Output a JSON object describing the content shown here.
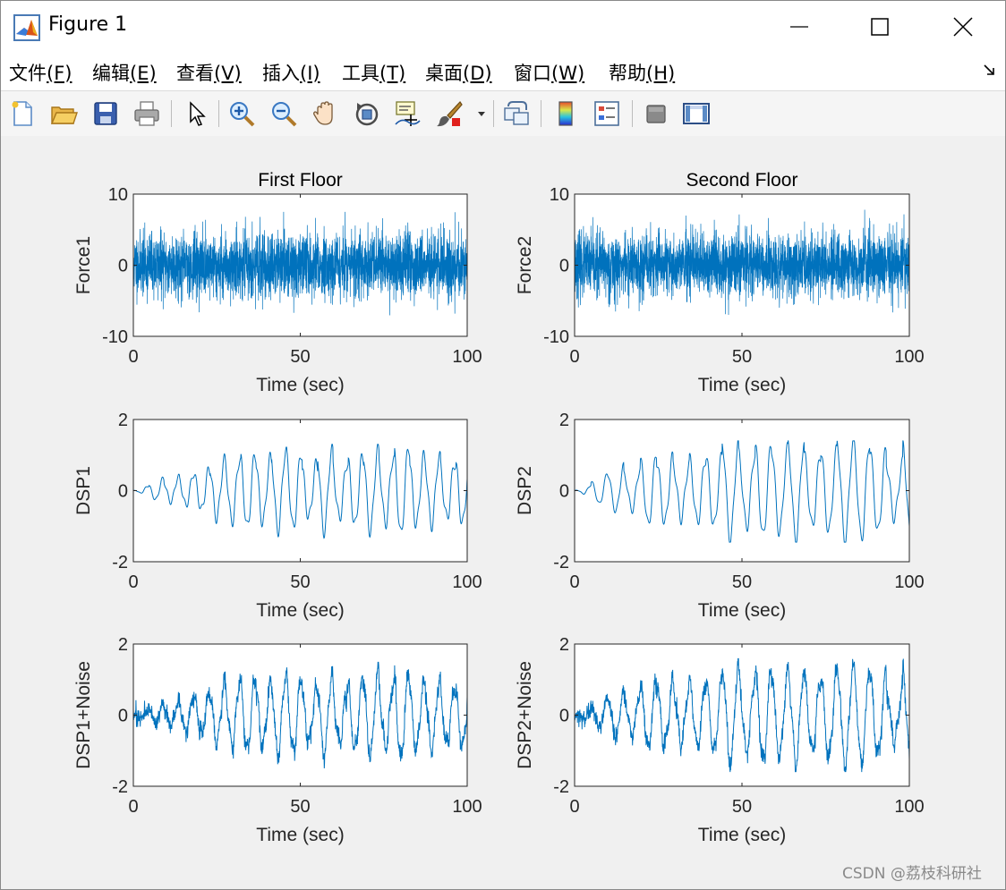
{
  "window": {
    "title": "Figure 1"
  },
  "menu": [
    {
      "label": "文件",
      "key": "(F)"
    },
    {
      "label": "编辑",
      "key": "(E)"
    },
    {
      "label": "查看",
      "key": "(V)"
    },
    {
      "label": "插入",
      "key": "(I)"
    },
    {
      "label": "工具",
      "key": "(T)"
    },
    {
      "label": "桌面",
      "key": "(D)"
    },
    {
      "label": "窗口",
      "key": "(W)"
    },
    {
      "label": "帮助",
      "key": "(H)"
    }
  ],
  "toolbar": [
    "new-figure-icon",
    "open-file-icon",
    "save-icon",
    "print-icon",
    "pointer-icon",
    "zoom-in-icon",
    "zoom-out-icon",
    "pan-hand-icon",
    "rotate-3d-icon",
    "data-cursor-icon",
    "brush-icon",
    "brush-dropdown-icon",
    "link-plot-icon",
    "colorbar-icon",
    "legend-icon",
    "hide-plot-tools-icon",
    "show-plot-tools-icon"
  ],
  "watermark": "CSDN @荔枝科研社",
  "colors": {
    "line": "#0072BD",
    "background": "#f0f0f0"
  },
  "chart_data": [
    {
      "type": "line",
      "title": "First Floor",
      "xlabel": "Time (sec)",
      "ylabel": "Force1",
      "xlim": [
        0,
        100
      ],
      "ylim": [
        -10,
        10
      ],
      "xticks": [
        "0",
        "50",
        "100"
      ],
      "yticks": [
        "-10",
        "0",
        "10"
      ],
      "kind": "noise",
      "sigma": 2.2,
      "peak": 7.5,
      "seed": 11
    },
    {
      "type": "line",
      "title": "Second Floor",
      "xlabel": "Time (sec)",
      "ylabel": "Force2",
      "xlim": [
        0,
        100
      ],
      "ylim": [
        -10,
        10
      ],
      "xticks": [
        "0",
        "50",
        "100"
      ],
      "yticks": [
        "-10",
        "0",
        "10"
      ],
      "kind": "noise",
      "sigma": 2.2,
      "peak": 7.8,
      "seed": 23
    },
    {
      "type": "line",
      "title": "",
      "xlabel": "Time (sec)",
      "ylabel": "DSP1",
      "xlim": [
        0,
        100
      ],
      "ylim": [
        -2,
        2
      ],
      "xticks": [
        "0",
        "50",
        "100"
      ],
      "yticks": [
        "-2",
        "0",
        "2"
      ],
      "kind": "oscillation",
      "period": 4.6,
      "max_amplitude": 1.3,
      "min_value": -1.35,
      "max_value": 1.3,
      "noise": 0,
      "seed": 37
    },
    {
      "type": "line",
      "title": "",
      "xlabel": "Time (sec)",
      "ylabel": "DSP2",
      "xlim": [
        0,
        100
      ],
      "ylim": [
        -2,
        2
      ],
      "xticks": [
        "0",
        "50",
        "100"
      ],
      "yticks": [
        "-2",
        "0",
        "2"
      ],
      "kind": "oscillation",
      "period": 4.9,
      "max_amplitude": 1.4,
      "min_value": -1.45,
      "max_value": 1.4,
      "noise": 0,
      "seed": 41
    },
    {
      "type": "line",
      "title": "",
      "xlabel": "Time (sec)",
      "ylabel": "DSP1+Noise",
      "xlim": [
        0,
        100
      ],
      "ylim": [
        -2,
        2
      ],
      "xticks": [
        "0",
        "50",
        "100"
      ],
      "yticks": [
        "-2",
        "0",
        "2"
      ],
      "kind": "oscillation",
      "period": 4.6,
      "max_amplitude": 1.3,
      "min_value": -1.6,
      "max_value": 1.5,
      "noise": 0.12,
      "seed": 37
    },
    {
      "type": "line",
      "title": "",
      "xlabel": "Time (sec)",
      "ylabel": "DSP2+Noise",
      "xlim": [
        0,
        100
      ],
      "ylim": [
        -2,
        2
      ],
      "xticks": [
        "0",
        "50",
        "100"
      ],
      "yticks": [
        "-2",
        "0",
        "2"
      ],
      "kind": "oscillation",
      "period": 4.9,
      "max_amplitude": 1.4,
      "min_value": -1.6,
      "max_value": 1.6,
      "noise": 0.12,
      "seed": 41
    }
  ]
}
